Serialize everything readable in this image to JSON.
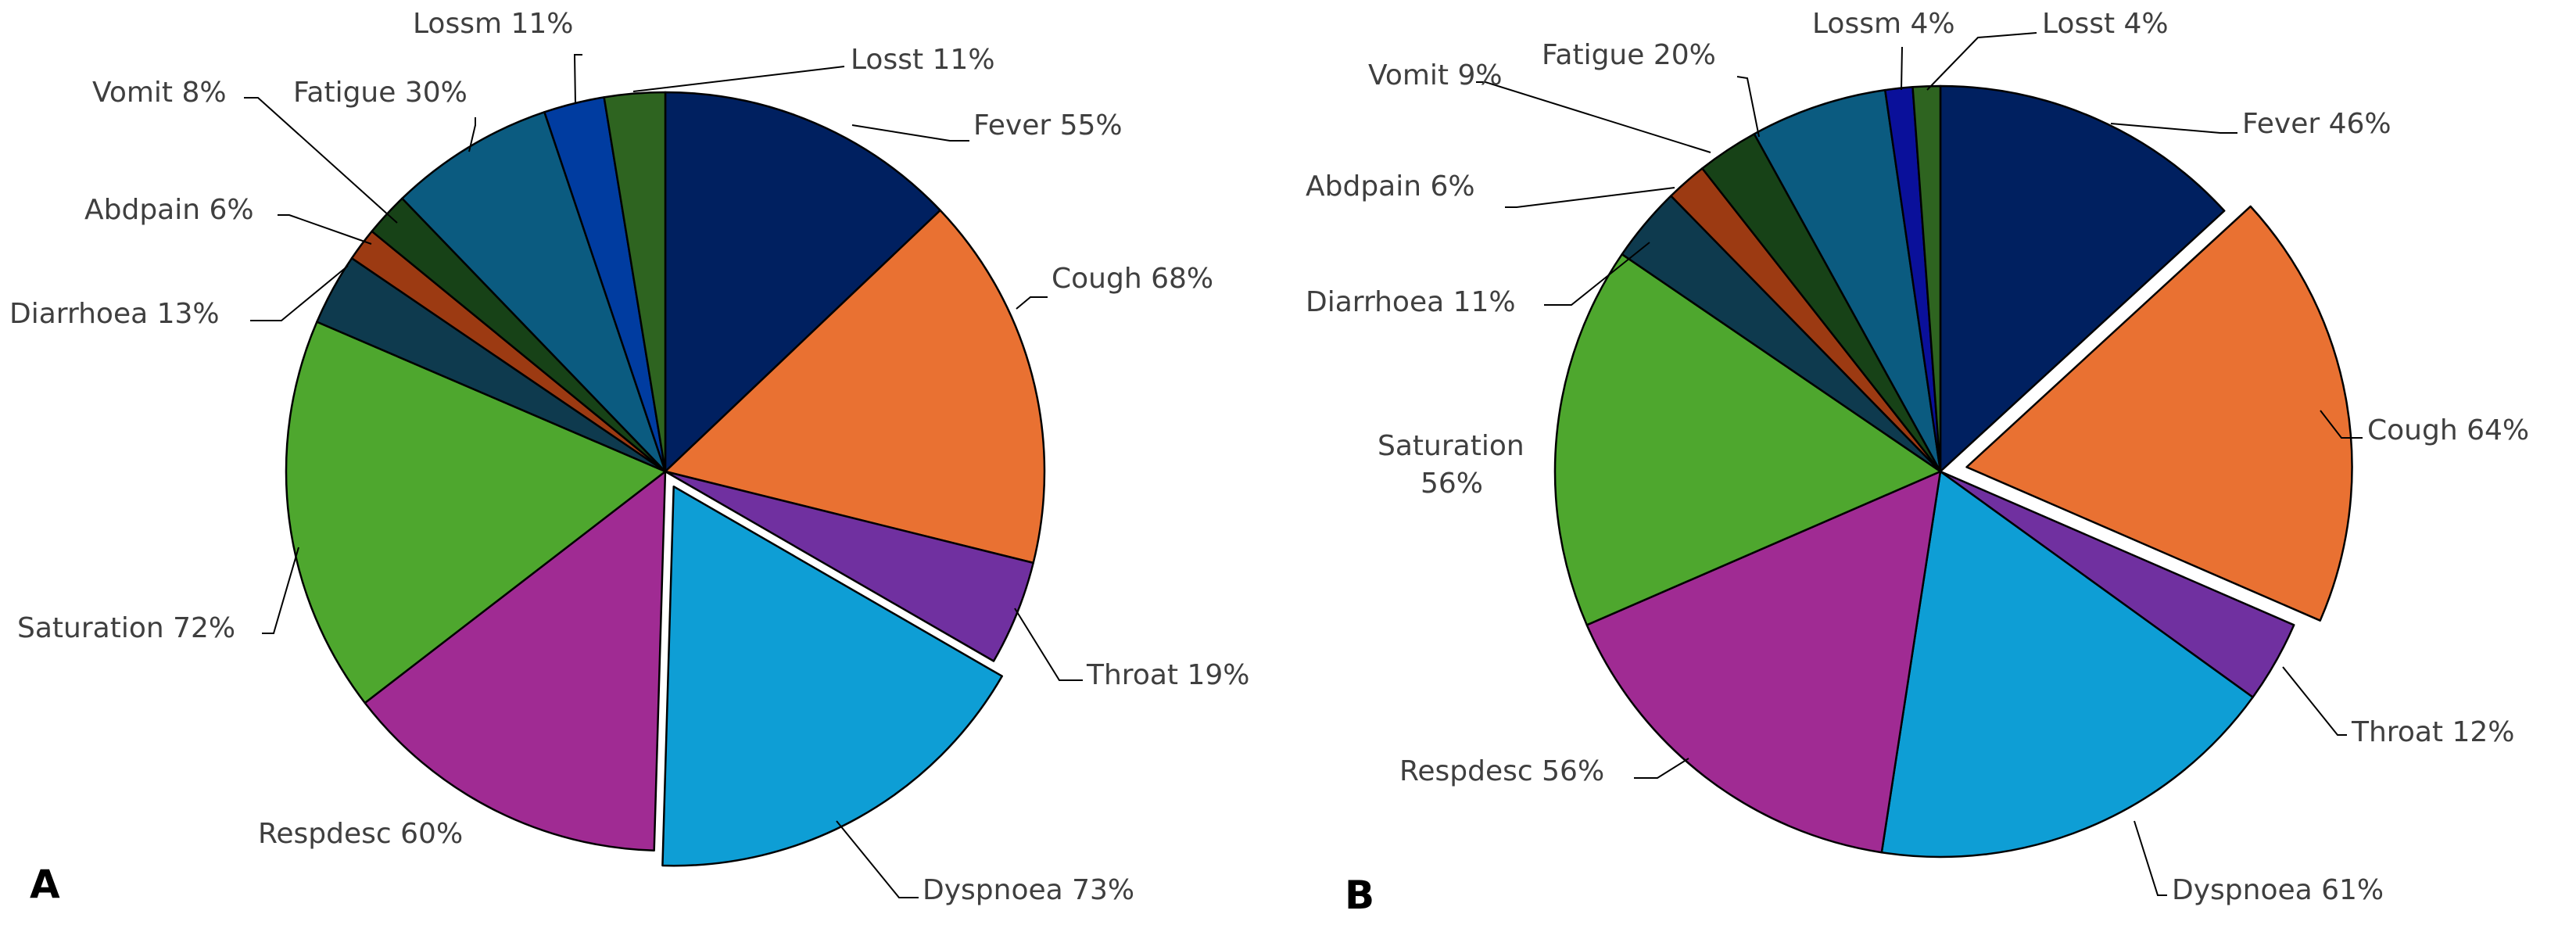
{
  "chart_data": [
    {
      "type": "pie",
      "panel_label": "A",
      "exploded": "Dyspnoea",
      "slices": [
        {
          "name": "Fever",
          "value": 55,
          "label": "Fever 55%",
          "color": "#002060"
        },
        {
          "name": "Cough",
          "value": 68,
          "label": "Cough 68%",
          "color": "#E97132"
        },
        {
          "name": "Throat",
          "value": 19,
          "label": "Throat 19%",
          "color": "#7030A0"
        },
        {
          "name": "Dyspnoea",
          "value": 73,
          "label": "Dyspnoea 73%",
          "color": "#0E9ED5"
        },
        {
          "name": "Respdesc",
          "value": 60,
          "label": "Respdesc 60%",
          "color": "#A02B93"
        },
        {
          "name": "Saturation",
          "value": 72,
          "label": "Saturation 72%",
          "color": "#4EA72E"
        },
        {
          "name": "Diarrhoea",
          "value": 13,
          "label": "Diarrhoea 13%",
          "color": "#0E3A4E"
        },
        {
          "name": "Abdpain",
          "value": 6,
          "label": "Abdpain 6%",
          "color": "#9C3A12"
        },
        {
          "name": "Vomit",
          "value": 8,
          "label": "Vomit 8%",
          "color": "#174217"
        },
        {
          "name": "Fatigue",
          "value": 30,
          "label": "Fatigue 30%",
          "color": "#0B5B80"
        },
        {
          "name": "Lossm",
          "value": 11,
          "label": "Lossm 11%",
          "color": "#003CA0"
        },
        {
          "name": "Losst",
          "value": 11,
          "label": "Losst 11%",
          "color": "#2E6420"
        }
      ]
    },
    {
      "type": "pie",
      "panel_label": "B",
      "exploded": "Cough",
      "slices": [
        {
          "name": "Fever",
          "value": 46,
          "label": "Fever 46%",
          "color": "#002060"
        },
        {
          "name": "Cough",
          "value": 64,
          "label": "Cough 64%",
          "color": "#E97132"
        },
        {
          "name": "Throat",
          "value": 12,
          "label": "Throat 12%",
          "color": "#7030A0"
        },
        {
          "name": "Dyspnoea",
          "value": 61,
          "label": "Dyspnoea 61%",
          "color": "#0E9ED5"
        },
        {
          "name": "Respdesc",
          "value": 56,
          "label": "Respdesc 56%",
          "color": "#A02B93"
        },
        {
          "name": "Saturation",
          "value": 56,
          "label": "Saturation\n56%",
          "color": "#4EA72E"
        },
        {
          "name": "Diarrhoea",
          "value": 11,
          "label": "Diarrhoea 11%",
          "color": "#0E3A4E"
        },
        {
          "name": "Abdpain",
          "value": 6,
          "label": "Abdpain 6%",
          "color": "#9C3A12"
        },
        {
          "name": "Vomit",
          "value": 9,
          "label": "Vomit 9%",
          "color": "#174217"
        },
        {
          "name": "Fatigue",
          "value": 20,
          "label": "Fatigue 20%",
          "color": "#0B5B80"
        },
        {
          "name": "Lossm",
          "value": 4,
          "label": "Lossm 4%",
          "color": "#0A109A"
        },
        {
          "name": "Losst",
          "value": 4,
          "label": "Losst 4%",
          "color": "#2E6420"
        }
      ]
    }
  ]
}
